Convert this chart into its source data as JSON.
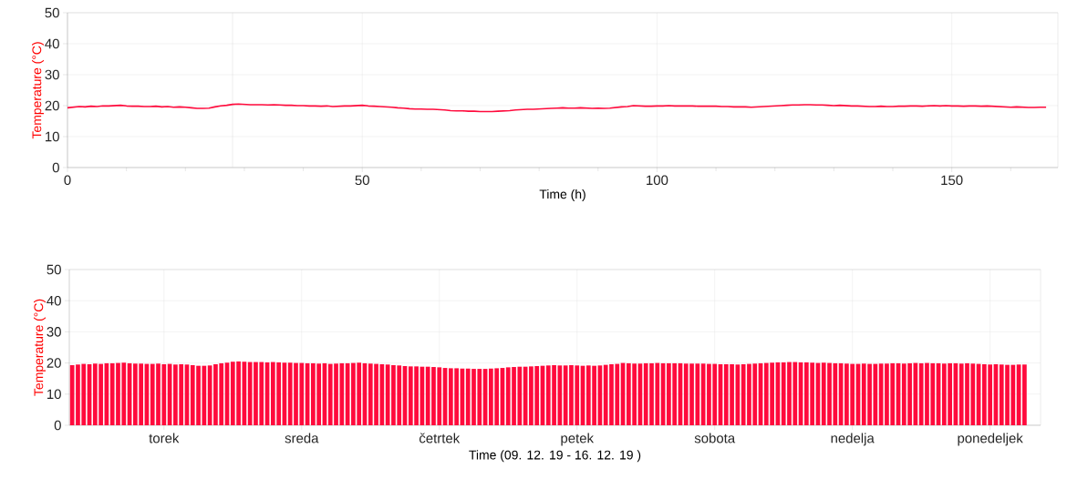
{
  "chart_data": [
    {
      "type": "line",
      "xlabel": "Time (h)",
      "ylabel": "Temperature (°C)",
      "xlim": [
        0,
        168
      ],
      "ylim": [
        0,
        50
      ],
      "xticks": [
        0,
        {
          "value": 10,
          "label": null
        },
        {
          "value": 20,
          "label": null
        },
        {
          "value": 30,
          "label": null
        },
        {
          "value": 40,
          "label": null
        },
        50,
        {
          "value": 60,
          "label": null
        },
        {
          "value": 70,
          "label": null
        },
        {
          "value": 80,
          "label": null
        },
        {
          "value": 90,
          "label": null
        },
        100,
        {
          "value": 110,
          "label": null
        },
        {
          "value": 120,
          "label": null
        },
        {
          "value": 130,
          "label": null
        },
        {
          "value": 140,
          "label": null
        },
        150,
        {
          "value": 160,
          "label": null
        }
      ],
      "yticks": [
        0,
        10,
        20,
        30,
        40,
        50
      ],
      "grid": true,
      "ref_lines": [
        {
          "axis": "x",
          "value": 28,
          "color": "#d0d0d0"
        }
      ],
      "series": [
        {
          "color": "#ff0a3c",
          "x": [
            0,
            1,
            2,
            3,
            4,
            5,
            6,
            7,
            8,
            9,
            10,
            11,
            12,
            13,
            14,
            15,
            16,
            17,
            18,
            19,
            20,
            21,
            22,
            23,
            24,
            25,
            26,
            27,
            28,
            29,
            30,
            31,
            32,
            33,
            34,
            35,
            36,
            37,
            38,
            39,
            40,
            41,
            42,
            43,
            44,
            45,
            46,
            47,
            48,
            49,
            50,
            51,
            52,
            53,
            54,
            55,
            56,
            57,
            58,
            59,
            60,
            61,
            62,
            63,
            64,
            65,
            66,
            67,
            68,
            69,
            70,
            71,
            72,
            73,
            74,
            75,
            76,
            77,
            78,
            79,
            80,
            81,
            82,
            83,
            84,
            85,
            86,
            87,
            88,
            89,
            90,
            91,
            92,
            93,
            94,
            95,
            96,
            97,
            98,
            99,
            100,
            101,
            102,
            103,
            104,
            105,
            106,
            107,
            108,
            109,
            110,
            111,
            112,
            113,
            114,
            115,
            116,
            117,
            118,
            119,
            120,
            121,
            122,
            123,
            124,
            125,
            126,
            127,
            128,
            129,
            130,
            131,
            132,
            133,
            134,
            135,
            136,
            137,
            138,
            139,
            140,
            141,
            142,
            143,
            144,
            145,
            146,
            147,
            148,
            149,
            150,
            151,
            152,
            153,
            154,
            155,
            156,
            157,
            158,
            159,
            160,
            161,
            162,
            163,
            164,
            165,
            166
          ],
          "values": [
            19.3,
            19.5,
            19.7,
            19.6,
            19.8,
            19.7,
            19.9,
            19.9,
            20.0,
            20.1,
            19.9,
            19.8,
            19.8,
            19.7,
            19.7,
            19.8,
            19.6,
            19.7,
            19.5,
            19.6,
            19.5,
            19.3,
            19.1,
            19.1,
            19.2,
            19.6,
            19.9,
            20.1,
            20.4,
            20.5,
            20.4,
            20.3,
            20.3,
            20.3,
            20.2,
            20.3,
            20.2,
            20.1,
            20.1,
            20.0,
            20.0,
            19.9,
            19.9,
            19.8,
            19.9,
            19.7,
            19.8,
            19.9,
            19.9,
            20.0,
            20.1,
            19.9,
            19.8,
            19.7,
            19.6,
            19.5,
            19.3,
            19.2,
            19.0,
            18.9,
            18.9,
            18.8,
            18.8,
            18.7,
            18.6,
            18.4,
            18.3,
            18.3,
            18.2,
            18.2,
            18.1,
            18.1,
            18.1,
            18.2,
            18.3,
            18.4,
            18.6,
            18.7,
            18.8,
            18.8,
            18.9,
            19.0,
            19.1,
            19.2,
            19.3,
            19.2,
            19.2,
            19.3,
            19.2,
            19.1,
            19.2,
            19.1,
            19.2,
            19.4,
            19.6,
            19.7,
            20.0,
            19.9,
            19.8,
            19.8,
            19.9,
            19.9,
            20.0,
            19.9,
            19.9,
            19.9,
            19.9,
            19.8,
            19.8,
            19.8,
            19.8,
            19.7,
            19.7,
            19.6,
            19.6,
            19.6,
            19.5,
            19.6,
            19.7,
            19.8,
            19.9,
            20.0,
            20.1,
            20.2,
            20.2,
            20.3,
            20.3,
            20.2,
            20.2,
            20.1,
            20.0,
            20.1,
            20.0,
            19.9,
            19.9,
            19.8,
            19.7,
            19.7,
            19.8,
            19.7,
            19.7,
            19.8,
            19.8,
            19.9,
            19.9,
            19.8,
            19.9,
            20.0,
            19.9,
            20.0,
            19.9,
            19.9,
            19.8,
            19.9,
            19.9,
            19.8,
            19.9,
            19.8,
            19.7,
            19.6,
            19.5,
            19.6,
            19.5,
            19.4,
            19.4,
            19.5,
            19.5
          ]
        }
      ]
    },
    {
      "type": "bar",
      "xlabel": "Time (09. 12. 19 - 16. 12. 19 )",
      "ylabel": "Temperature (°C)",
      "ylim": [
        0,
        50
      ],
      "categories": [
        null,
        null,
        null,
        null,
        null,
        null,
        null,
        null,
        null,
        null,
        null,
        null,
        null,
        null,
        null,
        null,
        "torek",
        null,
        null,
        null,
        null,
        null,
        null,
        null,
        null,
        null,
        null,
        null,
        null,
        null,
        null,
        null,
        null,
        null,
        null,
        null,
        null,
        null,
        null,
        null,
        "sreda",
        null,
        null,
        null,
        null,
        null,
        null,
        null,
        null,
        null,
        null,
        null,
        null,
        null,
        null,
        null,
        null,
        null,
        null,
        null,
        null,
        null,
        null,
        null,
        "četrtek",
        null,
        null,
        null,
        null,
        null,
        null,
        null,
        null,
        null,
        null,
        null,
        null,
        null,
        null,
        null,
        null,
        null,
        null,
        null,
        null,
        null,
        null,
        null,
        "petek",
        null,
        null,
        null,
        null,
        null,
        null,
        null,
        null,
        null,
        null,
        null,
        null,
        null,
        null,
        null,
        null,
        null,
        null,
        null,
        null,
        null,
        null,
        null,
        "sobota",
        null,
        null,
        null,
        null,
        null,
        null,
        null,
        null,
        null,
        null,
        null,
        null,
        null,
        null,
        null,
        null,
        null,
        null,
        null,
        null,
        null,
        null,
        null,
        "nedelja",
        null,
        null,
        null,
        null,
        null,
        null,
        null,
        null,
        null,
        null,
        null,
        null,
        null,
        null,
        null,
        null,
        null,
        null,
        null,
        null,
        null,
        null,
        null,
        "ponedeljek",
        null,
        null,
        null,
        null,
        null,
        null
      ],
      "yticks": [
        0,
        10,
        20,
        30,
        40,
        50
      ],
      "grid": true,
      "series": [
        {
          "color": "#ff0a3c",
          "values": [
            19.3,
            19.5,
            19.7,
            19.6,
            19.8,
            19.7,
            19.9,
            19.9,
            20.0,
            20.1,
            19.9,
            19.8,
            19.8,
            19.7,
            19.7,
            19.8,
            19.6,
            19.7,
            19.5,
            19.6,
            19.5,
            19.3,
            19.1,
            19.1,
            19.2,
            19.6,
            19.9,
            20.1,
            20.4,
            20.5,
            20.4,
            20.3,
            20.3,
            20.3,
            20.2,
            20.3,
            20.2,
            20.1,
            20.1,
            20.0,
            20.0,
            19.9,
            19.9,
            19.8,
            19.9,
            19.7,
            19.8,
            19.9,
            19.9,
            20.0,
            20.1,
            19.9,
            19.8,
            19.7,
            19.6,
            19.5,
            19.3,
            19.2,
            19.0,
            18.9,
            18.9,
            18.8,
            18.8,
            18.7,
            18.6,
            18.4,
            18.3,
            18.3,
            18.2,
            18.2,
            18.1,
            18.1,
            18.1,
            18.2,
            18.3,
            18.4,
            18.6,
            18.7,
            18.8,
            18.8,
            18.9,
            19.0,
            19.1,
            19.2,
            19.3,
            19.2,
            19.2,
            19.3,
            19.2,
            19.1,
            19.2,
            19.1,
            19.2,
            19.4,
            19.6,
            19.7,
            20.0,
            19.9,
            19.8,
            19.8,
            19.9,
            19.9,
            20.0,
            19.9,
            19.9,
            19.9,
            19.9,
            19.8,
            19.8,
            19.8,
            19.8,
            19.7,
            19.7,
            19.6,
            19.6,
            19.6,
            19.5,
            19.6,
            19.7,
            19.8,
            19.9,
            20.0,
            20.1,
            20.2,
            20.2,
            20.3,
            20.3,
            20.2,
            20.2,
            20.1,
            20.0,
            20.1,
            20.0,
            19.9,
            19.9,
            19.8,
            19.7,
            19.7,
            19.8,
            19.7,
            19.7,
            19.8,
            19.8,
            19.9,
            19.9,
            19.8,
            19.9,
            20.0,
            19.9,
            20.0,
            19.9,
            19.9,
            19.8,
            19.9,
            19.9,
            19.8,
            19.9,
            19.8,
            19.7,
            19.6,
            19.5,
            19.6,
            19.5,
            19.4,
            19.4,
            19.5,
            19.5
          ]
        }
      ]
    }
  ]
}
